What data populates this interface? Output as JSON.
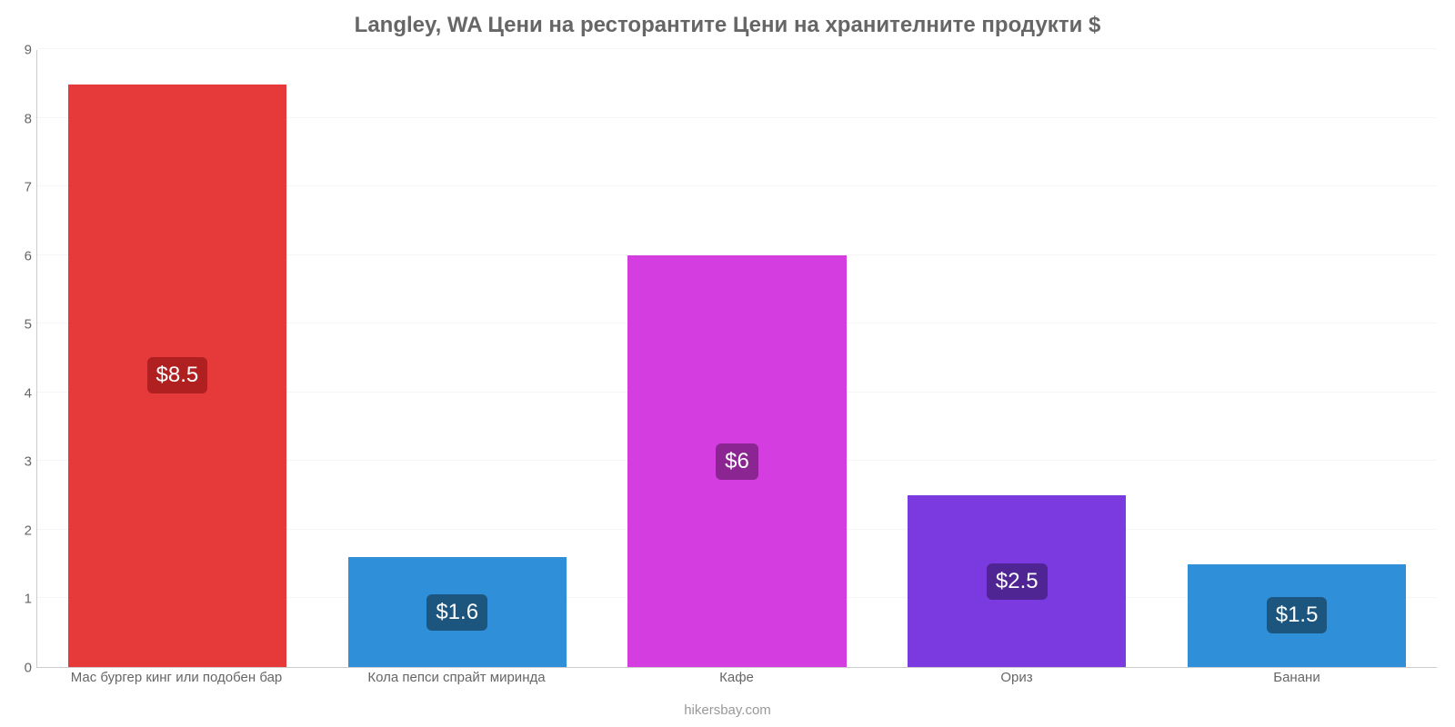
{
  "chart": {
    "type": "bar",
    "title": "Langley, WA Цени на ресторантите Цени на хранителните продукти $",
    "title_fontsize": 24,
    "title_color": "#666666",
    "credit": "hikersbay.com",
    "credit_color": "#999999",
    "background_color": "#ffffff",
    "grid_color": "#f5f5f5",
    "axis_color": "#cccccc",
    "tick_color": "#666666",
    "tick_fontsize": 15,
    "ylim": [
      0,
      9
    ],
    "ytick_step": 1,
    "yticks": [
      "0",
      "1",
      "2",
      "3",
      "4",
      "5",
      "6",
      "7",
      "8",
      "9"
    ],
    "bar_width": 0.78,
    "value_badge": {
      "fontsize": 24,
      "text_color": "#ffffff",
      "radius": 6,
      "padding": "6px 10px"
    },
    "categories": [
      "Мас бургер кинг или подобен бар",
      "Кола пепси спрайт миринда",
      "Кафе",
      "Ориз",
      "Банани"
    ],
    "values": [
      8.5,
      1.6,
      6,
      2.5,
      1.5
    ],
    "value_labels": [
      "$8.5",
      "$1.6",
      "$6",
      "$2.5",
      "$1.5"
    ],
    "bar_colors": [
      "#e63939",
      "#2f8fd8",
      "#d43ee0",
      "#7b3ae0",
      "#2f8fd8"
    ],
    "badge_colors": [
      "#b02020",
      "#1c567f",
      "#8b2592",
      "#4f2594",
      "#1c567f"
    ]
  }
}
